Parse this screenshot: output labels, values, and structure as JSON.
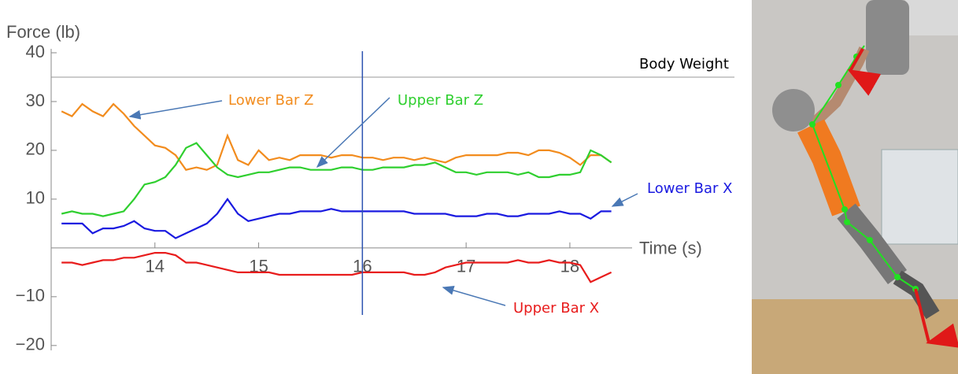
{
  "chart_data": {
    "type": "line",
    "y_label": "Force (lb)",
    "x_label": "Time (s)",
    "xlim": [
      13,
      18.6
    ],
    "ylim": [
      -21,
      40
    ],
    "xticks": [
      14,
      15,
      16,
      17,
      18
    ],
    "yticks": [
      40,
      30,
      20,
      10,
      {
        "value": -10,
        "label": "−10"
      },
      {
        "value": -20,
        "label": "−20"
      }
    ],
    "reference_line": {
      "value": 35,
      "label": "Body Weight",
      "color": "#999999"
    },
    "marker_time": 16,
    "x": [
      13.1,
      13.2,
      13.3,
      13.4,
      13.5,
      13.6,
      13.7,
      13.8,
      13.9,
      14.0,
      14.1,
      14.2,
      14.3,
      14.4,
      14.5,
      14.6,
      14.7,
      14.8,
      14.9,
      15.0,
      15.1,
      15.2,
      15.3,
      15.4,
      15.5,
      15.6,
      15.7,
      15.8,
      15.9,
      16.0,
      16.1,
      16.2,
      16.3,
      16.4,
      16.5,
      16.6,
      16.7,
      16.8,
      16.9,
      17.0,
      17.1,
      17.2,
      17.3,
      17.4,
      17.5,
      17.6,
      17.7,
      17.8,
      17.9,
      18.0,
      18.1,
      18.2,
      18.3,
      18.4
    ],
    "series": [
      {
        "name": "Lower Bar Z",
        "color": "#f28c1e",
        "values": [
          28,
          27,
          29.5,
          28,
          27,
          29.5,
          27.5,
          25,
          23,
          21,
          20.5,
          19,
          16,
          16.5,
          16,
          17,
          23,
          18,
          17,
          20,
          18,
          18.5,
          18,
          19,
          19,
          19,
          18.5,
          19,
          19,
          18.5,
          18.5,
          18,
          18.5,
          18.5,
          18,
          18.5,
          18,
          17.5,
          18.5,
          19,
          19,
          19,
          19,
          19.5,
          19.5,
          19,
          20,
          20,
          19.5,
          18.5,
          17,
          19,
          19,
          17.5
        ]
      },
      {
        "name": "Upper Bar Z",
        "color": "#2fcf2f",
        "values": [
          7,
          7.5,
          7,
          7,
          6.5,
          7,
          7.5,
          10,
          13,
          13.5,
          14.5,
          17,
          20.5,
          21.5,
          19,
          16.5,
          15,
          14.5,
          15,
          15.5,
          15.5,
          16,
          16.5,
          16.5,
          16,
          16,
          16,
          16.5,
          16.5,
          16,
          16,
          16.5,
          16.5,
          16.5,
          17,
          17,
          17.5,
          16.5,
          15.5,
          15.5,
          15,
          15.5,
          15.5,
          15.5,
          15,
          15.5,
          14.5,
          14.5,
          15,
          15,
          15.5,
          20,
          19,
          17.5
        ]
      },
      {
        "name": "Lower Bar X",
        "color": "#1a1ae0",
        "values": [
          5,
          5,
          5,
          3,
          4,
          4,
          4.5,
          5.5,
          4,
          3.5,
          3.5,
          2,
          3,
          4,
          5,
          7,
          10,
          7,
          5.5,
          6,
          6.5,
          7,
          7,
          7.5,
          7.5,
          7.5,
          8,
          7.5,
          7.5,
          7.5,
          7.5,
          7.5,
          7.5,
          7.5,
          7,
          7,
          7,
          7,
          6.5,
          6.5,
          6.5,
          7,
          7,
          6.5,
          6.5,
          7,
          7,
          7,
          7.5,
          7,
          7,
          6,
          7.5,
          7.5
        ]
      },
      {
        "name": "Upper Bar X",
        "color": "#e81c1c",
        "values": [
          -3,
          -3,
          -3.5,
          -3,
          -2.5,
          -2.5,
          -2,
          -2,
          -1.5,
          -1,
          -1,
          -1.5,
          -3,
          -3,
          -3.5,
          -4,
          -4.5,
          -5,
          -5,
          -5,
          -5,
          -5.5,
          -5.5,
          -5.5,
          -5.5,
          -5.5,
          -5.5,
          -5.5,
          -5.5,
          -5,
          -5,
          -5,
          -5,
          -5,
          -5.5,
          -5.5,
          -5,
          -4,
          -3.5,
          -3,
          -3,
          -3,
          -3,
          -3,
          -2.5,
          -3,
          -3,
          -2.5,
          -3,
          -3,
          -3.5,
          -7,
          -6,
          -5
        ]
      }
    ]
  }
}
